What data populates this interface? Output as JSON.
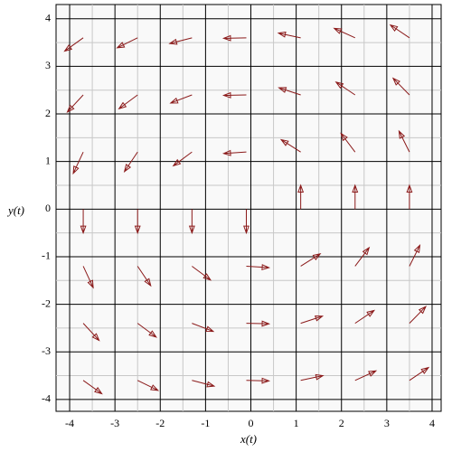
{
  "chart_data": {
    "type": "quiver",
    "x_label": "x(t)",
    "y_label": "y(t)",
    "xlim": [
      -4.3,
      4.2
    ],
    "ylim": [
      -4.25,
      4.3
    ],
    "xticks": [
      -4,
      -3,
      -2,
      -1,
      0,
      1,
      2,
      3,
      4
    ],
    "yticks": [
      -4,
      -3,
      -2,
      -1,
      0,
      1,
      2,
      3,
      4
    ],
    "xminor": [
      -3.5,
      -2.5,
      -1.5,
      -0.5,
      0.5,
      1.5,
      2.5,
      3.5
    ],
    "yminor": [
      -3.5,
      -2.5,
      -1.5,
      -0.5,
      0.5,
      1.5,
      2.5,
      3.5
    ],
    "grid": true,
    "color": "#8b1a1a",
    "x": [
      -3.7,
      -2.5,
      -1.3,
      -0.1,
      1.1,
      2.3,
      3.5,
      -3.7,
      -2.5,
      -1.3,
      -0.1,
      1.1,
      2.3,
      3.5,
      -3.7,
      -2.5,
      -1.3,
      -0.1,
      1.1,
      2.3,
      3.5,
      -3.7,
      -2.5,
      -1.3,
      -0.1,
      1.1,
      2.3,
      3.5,
      -3.7,
      -2.5,
      -1.3,
      -0.1,
      1.1,
      2.3,
      3.5,
      -3.7,
      -2.5,
      -1.3,
      -0.1,
      1.1,
      2.3,
      3.5,
      -3.7,
      -2.5,
      -1.3,
      -0.1,
      1.1,
      2.3,
      3.5
    ],
    "y": [
      3.6,
      3.6,
      3.6,
      3.6,
      3.6,
      3.6,
      3.6,
      2.4,
      2.4,
      2.4,
      2.4,
      2.4,
      2.4,
      2.4,
      1.2,
      1.2,
      1.2,
      1.2,
      1.2,
      1.2,
      1.2,
      0,
      0,
      0,
      0,
      0,
      0,
      0,
      -1.2,
      -1.2,
      -1.2,
      -1.2,
      -1.2,
      -1.2,
      -1.2,
      -2.4,
      -2.4,
      -2.4,
      -2.4,
      -2.4,
      -2.4,
      -2.4,
      -3.6,
      -3.6,
      -3.6,
      -3.6,
      -3.6,
      -3.6,
      -3.6
    ],
    "u": [
      -0.41,
      -0.45,
      -0.49,
      -0.5,
      -0.49,
      -0.46,
      -0.42,
      -0.35,
      -0.41,
      -0.47,
      -0.5,
      -0.48,
      -0.42,
      -0.36,
      -0.22,
      -0.29,
      -0.41,
      -0.5,
      -0.43,
      -0.31,
      -0.23,
      0,
      0,
      0,
      0,
      0,
      0,
      0,
      0.22,
      0.29,
      0.41,
      0.5,
      0.43,
      0.31,
      0.23,
      0.35,
      0.41,
      0.47,
      0.5,
      0.48,
      0.42,
      0.36,
      0.41,
      0.45,
      0.49,
      0.5,
      0.49,
      0.46,
      0.42
    ],
    "v": [
      -0.28,
      -0.21,
      -0.12,
      -0.01,
      0.1,
      0.2,
      0.27,
      -0.36,
      -0.29,
      -0.17,
      -0.01,
      0.15,
      0.27,
      0.35,
      -0.45,
      -0.41,
      -0.29,
      -0.03,
      0.26,
      0.39,
      0.44,
      -0.5,
      -0.5,
      -0.5,
      -0.5,
      0.5,
      0.5,
      0.5,
      -0.45,
      -0.41,
      -0.29,
      -0.03,
      0.26,
      0.39,
      0.44,
      -0.36,
      -0.29,
      -0.17,
      -0.01,
      0.15,
      0.27,
      0.35,
      -0.28,
      -0.21,
      -0.12,
      -0.01,
      0.1,
      0.2,
      0.27
    ]
  }
}
